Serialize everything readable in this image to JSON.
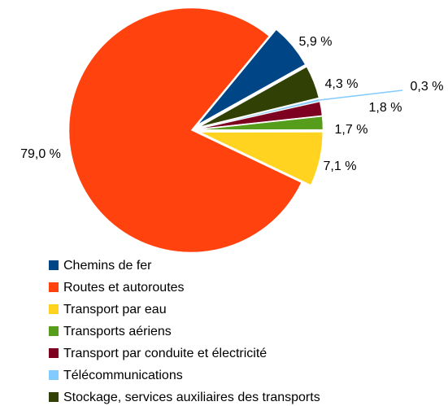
{
  "chart_data": {
    "type": "pie",
    "categories": [
      "Chemins de fer",
      "Routes et autoroutes",
      "Transport par eau",
      "Transports aériens",
      "Transport par conduite et électricité",
      "Télécommunications",
      "Stockage, services auxiliaires des transports"
    ],
    "values": [
      5.9,
      79.0,
      7.1,
      1.7,
      1.8,
      0.3,
      4.3
    ],
    "value_labels": [
      "5,9 %",
      "79,0 %",
      "7,1 %",
      "1,7 %",
      "1,8 %",
      "0,3 %",
      "4,3 %"
    ],
    "colors": [
      "#004586",
      "#ff420e",
      "#ffd320",
      "#579d1c",
      "#7e0021",
      "#83caff",
      "#314004"
    ],
    "legend": "bottom"
  }
}
